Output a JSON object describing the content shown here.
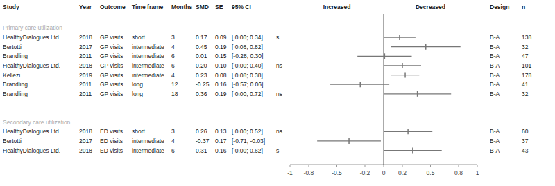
{
  "chart_data": {
    "type": "forest",
    "columns": [
      "Study",
      "Year",
      "Outcome",
      "Time frame",
      "Months",
      "SMD",
      "SE",
      "95% CI"
    ],
    "left_label": "Increased",
    "right_label": "Decreased",
    "right_columns": [
      "Design",
      "n"
    ],
    "color": "#777777",
    "xlim": [
      -1.0,
      1.0
    ],
    "xticks": [
      -1,
      -0.8,
      -0.5,
      -0.2,
      0,
      0.2,
      0.5,
      0.8,
      1
    ],
    "reference": 0,
    "sections": [
      {
        "title": "Primary care utilization",
        "color": "#aaaaaa",
        "rows": [
          {
            "study": "HealthyDialogues Ltd.",
            "year": "2018",
            "outcome": "GP visits",
            "timeframe": "short",
            "months": "3",
            "smd": 0.17,
            "smd_label": "0.17",
            "se": "0.09",
            "ci_lo": 0.0,
            "ci_hi": 0.34,
            "ci_label": "[ 0.00; 0.34]",
            "sig": "s",
            "design": "B-A",
            "n": "138"
          },
          {
            "study": "Bertotti",
            "year": "2017",
            "outcome": "GP visits",
            "timeframe": "intermediate",
            "months": "4",
            "smd": 0.45,
            "smd_label": "0.45",
            "se": "0.19",
            "ci_lo": 0.08,
            "ci_hi": 0.82,
            "ci_label": "[ 0.08; 0.82]",
            "sig": null,
            "design": "B-A",
            "n": "32"
          },
          {
            "study": "Brandling",
            "year": "2011",
            "outcome": "GP visits",
            "timeframe": "intermediate",
            "months": "6",
            "smd": 0.01,
            "smd_label": "0.01",
            "se": "0.15",
            "ci_lo": -0.28,
            "ci_hi": 0.3,
            "ci_label": "[-0.28; 0.30]",
            "sig": null,
            "design": "B-A",
            "n": "47"
          },
          {
            "study": "HealthyDialogues Ltd.",
            "year": "2018",
            "outcome": "GP visits",
            "timeframe": "intermediate",
            "months": "6",
            "smd": 0.2,
            "smd_label": "0.20",
            "se": "0.10",
            "ci_lo": 0.0,
            "ci_hi": 0.4,
            "ci_label": "[ 0.00; 0.40]",
            "sig": "ns",
            "design": "B-A",
            "n": "101"
          },
          {
            "study": "Kellezi",
            "year": "2019",
            "outcome": "GP visits",
            "timeframe": "intermediate",
            "months": "4",
            "smd": 0.23,
            "smd_label": "0.23",
            "se": "0.08",
            "ci_lo": 0.08,
            "ci_hi": 0.38,
            "ci_label": "[ 0.08; 0.38]",
            "sig": null,
            "design": "B-A",
            "n": "178"
          },
          {
            "study": "Brandling",
            "year": "2011",
            "outcome": "GP visits",
            "timeframe": "long",
            "months": "12",
            "smd": -0.25,
            "smd_label": "-0.25",
            "se": "0.16",
            "ci_lo": -0.57,
            "ci_hi": 0.06,
            "ci_label": "[-0.57; 0.06]",
            "sig": null,
            "design": "B-A",
            "n": "41"
          },
          {
            "study": "Brandling",
            "year": "2011",
            "outcome": "GP visits",
            "timeframe": "long",
            "months": "18",
            "smd": 0.36,
            "smd_label": "0.36",
            "se": "0.19",
            "ci_lo": 0.0,
            "ci_hi": 0.72,
            "ci_label": "[ 0.00; 0.72]",
            "sig": "ns",
            "design": "B-A",
            "n": "32"
          }
        ]
      },
      {
        "title": "Secondary care utilization",
        "color": "#aaaaaa",
        "rows": [
          {
            "study": "HealthyDialogues Ltd.",
            "year": "2018",
            "outcome": "ED visits",
            "timeframe": "short",
            "months": "3",
            "smd": 0.26,
            "smd_label": "0.26",
            "se": "0.13",
            "ci_lo": 0.0,
            "ci_hi": 0.52,
            "ci_label": "[ 0.00; 0.52]",
            "sig": "ns",
            "design": "B-A",
            "n": "60"
          },
          {
            "study": "Bertotti",
            "year": "2017",
            "outcome": "ED visits",
            "timeframe": "intermediate",
            "months": "4",
            "smd": -0.37,
            "smd_label": "-0.37",
            "se": "0.17",
            "ci_lo": -0.71,
            "ci_hi": -0.03,
            "ci_label": "[-0.71; -0.03]",
            "sig": null,
            "design": "B-A",
            "n": "37"
          },
          {
            "study": "HealthyDialogues Ltd.",
            "year": "2018",
            "outcome": "ED visits",
            "timeframe": "intermediate",
            "months": "6",
            "smd": 0.31,
            "smd_label": "0.31",
            "se": "0.16",
            "ci_lo": 0.0,
            "ci_hi": 0.62,
            "ci_label": "[ 0.00; 0.62]",
            "sig": "s",
            "design": "B-A",
            "n": "43"
          }
        ]
      }
    ]
  }
}
